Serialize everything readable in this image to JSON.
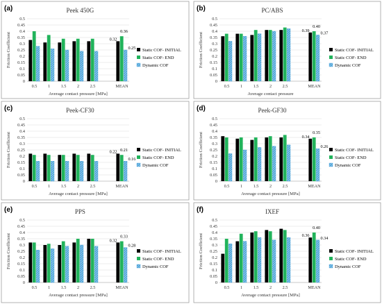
{
  "colors": {
    "static_initial": "#000000",
    "static_end": "#21b35b",
    "dynamic": "#4ba3d9",
    "dynamic_hatch": "#ffffff"
  },
  "legend": [
    "Static COF- INITIAL",
    "Static COF- END",
    "Dynamic COF"
  ],
  "chart_data": [
    {
      "letter": "(a)",
      "type": "bar",
      "title": "Peek 450G",
      "xlabel": "Average contact pressure [MPa]",
      "ylabel": "Friction Coefficient",
      "ylim": [
        0,
        0.5
      ],
      "yticks": [
        "0",
        "0.05",
        "0.1",
        "0.15",
        "0.2",
        "0.25",
        "0.3",
        "0.35",
        "0.4",
        "0.45",
        "0.5"
      ],
      "categories": [
        "0.5",
        "1",
        "1.5",
        "2",
        "2.5",
        "MEAN"
      ],
      "grid": true,
      "legend_position": "right",
      "series": [
        {
          "name": "Static COF- INITIAL",
          "values": [
            0.33,
            0.31,
            0.31,
            0.32,
            0.32,
            0.32
          ]
        },
        {
          "name": "Static COF- END",
          "values": [
            0.4,
            0.37,
            0.34,
            0.34,
            0.34,
            0.36
          ]
        },
        {
          "name": "Dynamic COF",
          "values": [
            0.28,
            0.26,
            0.25,
            0.24,
            0.24,
            0.25
          ]
        }
      ],
      "mean_labels": [
        "0.32",
        "0.36",
        "0.25"
      ]
    },
    {
      "letter": "(b)",
      "type": "bar",
      "title": "PC/ABS",
      "xlabel": "Average contact pressure",
      "ylabel": "Friction Coefficient",
      "ylim": [
        0,
        0.5
      ],
      "yticks": [
        "0",
        "0.05",
        "0.1",
        "0.15",
        "0.2",
        "0.25",
        "0.3",
        "0.35",
        "0.4",
        "0.45",
        "0.5"
      ],
      "categories": [
        "0.5",
        "1",
        "1.5",
        "2",
        "2.5",
        "MEAN"
      ],
      "grid": true,
      "legend_position": "right",
      "series": [
        {
          "name": "Static COF- INITIAL",
          "values": [
            0.36,
            0.38,
            0.37,
            0.41,
            0.41,
            0.39
          ]
        },
        {
          "name": "Static COF- END",
          "values": [
            0.38,
            0.38,
            0.41,
            0.41,
            0.43,
            0.4
          ]
        },
        {
          "name": "Dynamic COF",
          "values": [
            0.32,
            0.36,
            0.38,
            0.4,
            0.42,
            0.37
          ]
        }
      ],
      "mean_labels": [
        "0.39",
        "0.40",
        "0.37"
      ]
    },
    {
      "letter": "(c)",
      "type": "bar",
      "title": "Peek-CF30",
      "xlabel": "Average contact pressure [MPa]",
      "ylabel": "Friction Coefficient",
      "ylim": [
        0,
        0.5
      ],
      "yticks": [
        "0",
        "0.05",
        "0.1",
        "0.15",
        "0.2",
        "0.25",
        "0.3",
        "0.35",
        "0.4",
        "0.45",
        "0.5"
      ],
      "categories": [
        "0.5",
        "1",
        "1.5",
        "2",
        "2.5",
        "MEAN"
      ],
      "grid": true,
      "legend_position": "right",
      "series": [
        {
          "name": "Static COF- INITIAL",
          "values": [
            0.22,
            0.22,
            0.21,
            0.22,
            0.22,
            0.22
          ]
        },
        {
          "name": "Static COF- END",
          "values": [
            0.21,
            0.21,
            0.21,
            0.21,
            0.21,
            0.21
          ]
        },
        {
          "name": "Dynamic COF",
          "values": [
            0.16,
            0.16,
            0.16,
            0.16,
            0.16,
            0.16
          ]
        }
      ],
      "mean_labels": [
        "0.22",
        "0.21",
        "0.16"
      ]
    },
    {
      "letter": "(d)",
      "type": "bar",
      "title": "Peek-GF30",
      "xlabel": "Average contact pressure [MPa]",
      "ylabel": "Friction Coefficient",
      "ylim": [
        0,
        0.5
      ],
      "yticks": [
        "0",
        "0.05",
        "0.1",
        "0.15",
        "0.2",
        "0.25",
        "0.3",
        "0.35",
        "0.4",
        "0.45",
        "0.5"
      ],
      "categories": [
        "0.5",
        "1",
        "1.5",
        "2",
        "2.5",
        "MEAN"
      ],
      "grid": true,
      "legend_position": "right",
      "series": [
        {
          "name": "Static COF- INITIAL",
          "values": [
            0.36,
            0.34,
            0.33,
            0.35,
            0.35,
            0.34
          ]
        },
        {
          "name": "Static COF- END",
          "values": [
            0.35,
            0.35,
            0.35,
            0.36,
            0.37,
            0.35
          ]
        },
        {
          "name": "Dynamic COF",
          "values": [
            0.22,
            0.25,
            0.27,
            0.28,
            0.29,
            0.26
          ]
        }
      ],
      "mean_labels": [
        "0.34",
        "0.35",
        "0.26"
      ]
    },
    {
      "letter": "(e)",
      "type": "bar",
      "title": "PPS",
      "xlabel": "Average contact pressure [MPa]",
      "ylabel": "Friction Coefficient",
      "ylim": [
        0,
        0.5
      ],
      "yticks": [
        "0",
        "0.05",
        "0.1",
        "0.15",
        "0.2",
        "0.25",
        "0.3",
        "0.35",
        "0.4",
        "0.45",
        "0.5"
      ],
      "categories": [
        "0.5",
        "1",
        "1.5",
        "2",
        "2.5",
        "MEAN"
      ],
      "grid": true,
      "legend_position": "right",
      "series": [
        {
          "name": "Static COF- INITIAL",
          "values": [
            0.32,
            0.3,
            0.3,
            0.32,
            0.35,
            0.32
          ]
        },
        {
          "name": "Static COF- END",
          "values": [
            0.32,
            0.31,
            0.33,
            0.35,
            0.35,
            0.33
          ]
        },
        {
          "name": "Dynamic COF",
          "values": [
            0.26,
            0.27,
            0.29,
            0.3,
            0.29,
            0.28
          ]
        }
      ],
      "mean_labels": [
        "0.32",
        "0.33",
        "0.28"
      ]
    },
    {
      "letter": "(f)",
      "type": "bar",
      "title": "IXEF",
      "xlabel": "Average contact pressure [MPa]",
      "ylabel": "Friction Coefficient",
      "ylim": [
        0,
        0.5
      ],
      "yticks": [
        "0",
        "0.05",
        "0.1",
        "0.15",
        "0.2",
        "0.25",
        "0.3",
        "0.35",
        "0.4",
        "0.45",
        "0.5"
      ],
      "categories": [
        "0.5",
        "1",
        "1.5",
        "2",
        "2.5",
        "MEAN"
      ],
      "grid": true,
      "legend_position": "right",
      "series": [
        {
          "name": "Static COF- INITIAL",
          "values": [
            0.23,
            0.33,
            0.4,
            0.42,
            0.43,
            0.36
          ]
        },
        {
          "name": "Static COF- END",
          "values": [
            0.35,
            0.39,
            0.41,
            0.41,
            0.42,
            0.4
          ]
        },
        {
          "name": "Dynamic COF",
          "values": [
            0.31,
            0.33,
            0.36,
            0.34,
            0.36,
            0.34
          ]
        }
      ],
      "mean_labels": [
        "0.36",
        "0.40",
        "0.34"
      ]
    }
  ]
}
